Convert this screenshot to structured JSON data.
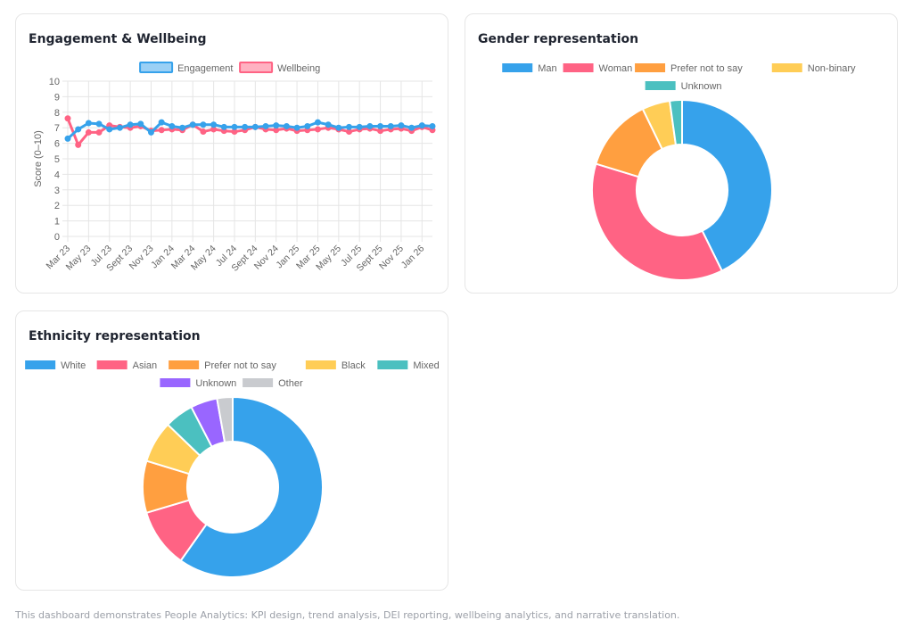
{
  "footer": "This dashboard demonstrates People Analytics: KPI design, trend analysis, DEI reporting, wellbeing analytics, and narrative translation.",
  "chart_data": [
    {
      "id": "engagement",
      "type": "line",
      "title": "Engagement & Wellbeing",
      "xlabel": "",
      "ylabel": "Score (0–10)",
      "ylim": [
        0,
        10
      ],
      "yticks": [
        0,
        1,
        2,
        3,
        4,
        5,
        6,
        7,
        8,
        9,
        10
      ],
      "grid": true,
      "legend": "top-center",
      "x": [
        "Mar 23",
        "Apr 23",
        "May 23",
        "Jun 23",
        "Jul 23",
        "Aug 23",
        "Sept 23",
        "Oct 23",
        "Nov 23",
        "Dec 23",
        "Jan 24",
        "Feb 24",
        "Mar 24",
        "Apr 24",
        "May 24",
        "Jun 24",
        "Jul 24",
        "Aug 24",
        "Sept 24",
        "Oct 24",
        "Nov 24",
        "Dec 24",
        "Jan 25",
        "Feb 25",
        "Mar 25",
        "Apr 25",
        "May 25",
        "Jun 25",
        "Jul 25",
        "Aug 25",
        "Sept 25",
        "Oct 25",
        "Nov 25",
        "Dec 25",
        "Jan 26",
        "Feb 26"
      ],
      "xtick_labels": [
        "Mar 23",
        "May 23",
        "Jul 23",
        "Sept 23",
        "Nov 23",
        "Jan 24",
        "Mar 24",
        "May 24",
        "Jul 24",
        "Sept 24",
        "Nov 24",
        "Jan 25",
        "Mar 25",
        "May 25",
        "Jul 25",
        "Sept 25",
        "Nov 25",
        "Jan 26"
      ],
      "series": [
        {
          "name": "Engagement",
          "color": "#36a2eb",
          "fill": "#9ad0f5",
          "values": [
            6.3,
            6.9,
            7.3,
            7.25,
            6.9,
            7.0,
            7.2,
            7.25,
            6.7,
            7.35,
            7.1,
            7.0,
            7.2,
            7.2,
            7.2,
            7.05,
            7.05,
            7.05,
            7.05,
            7.1,
            7.15,
            7.1,
            7.0,
            7.1,
            7.35,
            7.2,
            7.0,
            7.05,
            7.05,
            7.1,
            7.1,
            7.1,
            7.15,
            7.0,
            7.15,
            7.1
          ]
        },
        {
          "name": "Wellbeing",
          "color": "#ff6384",
          "fill": "#ffb1c1",
          "values": [
            7.6,
            5.9,
            6.7,
            6.7,
            7.15,
            7.05,
            7.0,
            7.1,
            6.8,
            6.85,
            6.9,
            6.85,
            7.2,
            6.75,
            6.9,
            6.8,
            6.75,
            6.85,
            7.05,
            6.9,
            6.85,
            6.95,
            6.8,
            6.85,
            6.9,
            7.0,
            6.9,
            6.75,
            6.9,
            6.95,
            6.8,
            6.9,
            6.95,
            6.8,
            7.05,
            6.85
          ]
        }
      ]
    },
    {
      "id": "gender",
      "type": "pie",
      "title": "Gender representation",
      "donut": true,
      "legend": "top-center",
      "categories": [
        "Man",
        "Woman",
        "Prefer not to say",
        "Non-binary",
        "Unknown"
      ],
      "values": [
        42.7,
        37.0,
        13.1,
        5.0,
        2.2
      ],
      "colors": [
        "#36a2eb",
        "#ff6384",
        "#ff9f40",
        "#ffcd56",
        "#4bc0c0"
      ]
    },
    {
      "id": "ethnicity",
      "type": "pie",
      "title": "Ethnicity representation",
      "donut": true,
      "legend": "top-center",
      "categories": [
        "White",
        "Asian",
        "Prefer not to say",
        "Black",
        "Mixed",
        "Unknown",
        "Other"
      ],
      "values": [
        59.8,
        10.6,
        9.3,
        7.5,
        5.2,
        4.8,
        2.8
      ],
      "colors": [
        "#36a2eb",
        "#ff6384",
        "#ff9f40",
        "#ffcd56",
        "#4bc0c0",
        "#9966ff",
        "#c9cbcf"
      ]
    }
  ]
}
